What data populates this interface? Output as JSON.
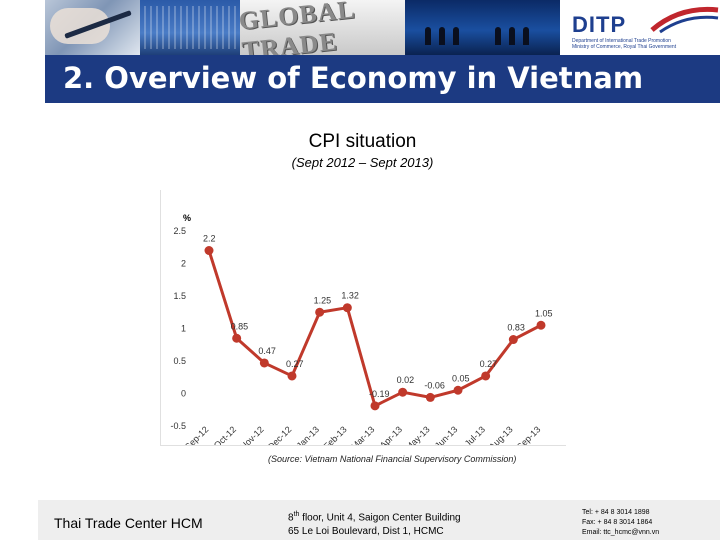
{
  "header": {
    "banner_word": "GLOBAL TRADE",
    "logo": {
      "name": "DITP",
      "subtitle_line1": "Department of International Trade Promotion",
      "subtitle_line2": "Ministry of Commerce, Royal Thai Government"
    }
  },
  "slide": {
    "title": "2. Overview of Economy in Vietnam"
  },
  "chart_data": {
    "type": "line",
    "title": "CPI situation",
    "subtitle": "(Sept 2012 – Sept 2013)",
    "ylabel": "%",
    "xlabel": "",
    "ylim": [
      -0.5,
      2.5
    ],
    "yticks": [
      "2.5",
      "2",
      "1.5",
      "1",
      "0.5",
      "0",
      "-0.5"
    ],
    "categories": [
      "Sep-12",
      "Oct-12",
      "Nov-12",
      "Dec-12",
      "Jan-13",
      "Feb-13",
      "Mar-13",
      "Apr-13",
      "May-13",
      "Jun-13",
      "Jul-13",
      "Aug-13",
      "Sep-13"
    ],
    "values": [
      2.2,
      0.85,
      0.47,
      0.27,
      1.25,
      1.32,
      -0.19,
      0.02,
      -0.06,
      0.05,
      0.27,
      0.83,
      1.05
    ],
    "data_labels": [
      "2.2",
      "0.85",
      "0.47",
      "0.27",
      "1.25",
      "1.32",
      "-0.19",
      "0.02",
      "-0.06",
      "0.05",
      "0.27",
      "0.83",
      "1.05"
    ],
    "grid": false,
    "legend": "none",
    "line_color": "#c0392b",
    "source": "(Source: Vietnam National Financial Supervisory Commission)"
  },
  "footer": {
    "left": "Thai Trade Center HCM",
    "address_line1_pre": "8",
    "address_line1_sup": "th",
    "address_line1_post": " floor, Unit 4, Saigon Center Building",
    "address_line2": "65 Le Loi Boulevard, Dist 1, HCMC",
    "tel": "Tel: + 84 8 3014 1898",
    "fax": "Fax: + 84 8 3014 1864",
    "email": "Email: ttc_hcmc@vnn.vn"
  }
}
